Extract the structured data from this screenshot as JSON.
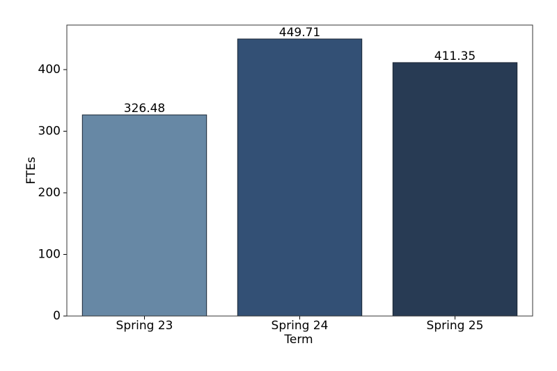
{
  "chart_data": {
    "type": "bar",
    "x_label": "Term",
    "y_label": "FTEs",
    "categories": [
      "Spring 23",
      "Spring 24",
      "Spring 25"
    ],
    "values": [
      326.48,
      449.71,
      411.35
    ],
    "colors": [
      "#6788a5",
      "#335075",
      "#283b54"
    ],
    "ylim": [
      0,
      472.3
    ],
    "yticks": [
      0,
      100,
      200,
      300,
      400
    ]
  }
}
